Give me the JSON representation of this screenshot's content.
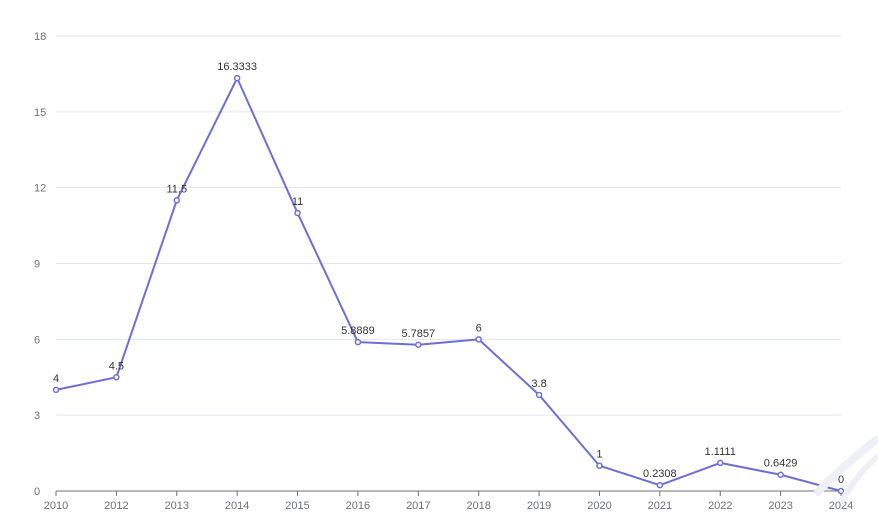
{
  "chart_data": {
    "type": "line",
    "x": [
      "2010",
      "2012",
      "2013",
      "2014",
      "2015",
      "2016",
      "2017",
      "2018",
      "2019",
      "2020",
      "2021",
      "2022",
      "2023",
      "2024"
    ],
    "series": [
      {
        "values": [
          4,
          4.5,
          11.5,
          16.3333,
          11,
          5.8889,
          5.7857,
          6,
          3.8,
          1,
          0.2308,
          1.1111,
          0.6429,
          0
        ],
        "labels": [
          "4",
          "4.5",
          "11.5",
          "16.3333",
          "11",
          "5.8889",
          "5.7857",
          "6",
          "3.8",
          "1",
          "0.2308",
          "1.1111",
          "0.6429",
          "0"
        ],
        "color": "#6b6fd6"
      }
    ],
    "y_ticks": [
      "0",
      "3",
      "6",
      "9",
      "12",
      "15",
      "18"
    ],
    "ylim": [
      0,
      18
    ],
    "grid": true
  }
}
